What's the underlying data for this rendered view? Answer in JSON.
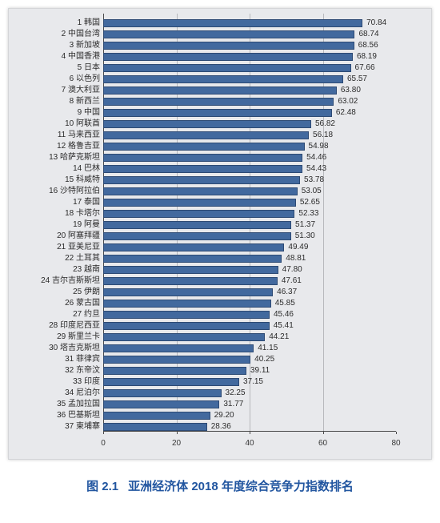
{
  "chart": {
    "type": "bar-horizontal",
    "background_color": "#e8e9ec",
    "bar_color": "#42699e",
    "bar_border_color": "#2d4a74",
    "grid_color": "#b7b8bc",
    "axis_color": "#4a4a4a",
    "text_color": "#2b2b2b",
    "label_fontsize": 10,
    "value_fontsize": 10,
    "xlim": [
      0,
      80
    ],
    "xtick_step": 20,
    "xticks": [
      "0",
      "20",
      "40",
      "60",
      "80"
    ],
    "rows": [
      {
        "rank": "1",
        "name": "韩国",
        "value": 70.84,
        "value_text": "70.84"
      },
      {
        "rank": "2",
        "name": "中国台湾",
        "value": 68.74,
        "value_text": "68.74"
      },
      {
        "rank": "3",
        "name": "新加坡",
        "value": 68.56,
        "value_text": "68.56"
      },
      {
        "rank": "4",
        "name": "中国香港",
        "value": 68.19,
        "value_text": "68.19"
      },
      {
        "rank": "5",
        "name": "日本",
        "value": 67.66,
        "value_text": "67.66"
      },
      {
        "rank": "6",
        "name": "以色列",
        "value": 65.57,
        "value_text": "65.57"
      },
      {
        "rank": "7",
        "name": "澳大利亚",
        "value": 63.8,
        "value_text": "63.80"
      },
      {
        "rank": "8",
        "name": "新西兰",
        "value": 63.02,
        "value_text": "63.02"
      },
      {
        "rank": "9",
        "name": "中国",
        "value": 62.48,
        "value_text": "62.48"
      },
      {
        "rank": "10",
        "name": "阿联酋",
        "value": 56.82,
        "value_text": "56.82"
      },
      {
        "rank": "11",
        "name": "马来西亚",
        "value": 56.18,
        "value_text": "56.18"
      },
      {
        "rank": "12",
        "name": "格鲁吉亚",
        "value": 54.98,
        "value_text": "54.98"
      },
      {
        "rank": "13",
        "name": "哈萨克斯坦",
        "value": 54.46,
        "value_text": "54.46"
      },
      {
        "rank": "14",
        "name": "巴林",
        "value": 54.43,
        "value_text": "54.43"
      },
      {
        "rank": "15",
        "name": "科威特",
        "value": 53.78,
        "value_text": "53.78"
      },
      {
        "rank": "16",
        "name": "沙特阿拉伯",
        "value": 53.05,
        "value_text": "53.05"
      },
      {
        "rank": "17",
        "name": "泰国",
        "value": 52.65,
        "value_text": "52.65"
      },
      {
        "rank": "18",
        "name": "卡塔尔",
        "value": 52.33,
        "value_text": "52.33"
      },
      {
        "rank": "19",
        "name": "阿曼",
        "value": 51.37,
        "value_text": "51.37"
      },
      {
        "rank": "20",
        "name": "阿塞拜疆",
        "value": 51.3,
        "value_text": "51.30"
      },
      {
        "rank": "21",
        "name": "亚美尼亚",
        "value": 49.49,
        "value_text": "49.49"
      },
      {
        "rank": "22",
        "name": "土耳其",
        "value": 48.81,
        "value_text": "48.81"
      },
      {
        "rank": "23",
        "name": "越南",
        "value": 47.8,
        "value_text": "47.80"
      },
      {
        "rank": "24",
        "name": "吉尔吉斯斯坦",
        "value": 47.61,
        "value_text": "47.61"
      },
      {
        "rank": "25",
        "name": "伊朗",
        "value": 46.37,
        "value_text": "46.37"
      },
      {
        "rank": "26",
        "name": "蒙古国",
        "value": 45.85,
        "value_text": "45.85"
      },
      {
        "rank": "27",
        "name": "约旦",
        "value": 45.46,
        "value_text": "45.46"
      },
      {
        "rank": "28",
        "name": "印度尼西亚",
        "value": 45.41,
        "value_text": "45.41"
      },
      {
        "rank": "29",
        "name": "斯里兰卡",
        "value": 44.21,
        "value_text": "44.21"
      },
      {
        "rank": "30",
        "name": "塔吉克斯坦",
        "value": 41.15,
        "value_text": "41.15"
      },
      {
        "rank": "31",
        "name": "菲律宾",
        "value": 40.25,
        "value_text": "40.25"
      },
      {
        "rank": "32",
        "name": "东帝汶",
        "value": 39.11,
        "value_text": "39.11"
      },
      {
        "rank": "33",
        "name": "印度",
        "value": 37.15,
        "value_text": "37.15"
      },
      {
        "rank": "34",
        "name": "尼泊尔",
        "value": 32.25,
        "value_text": "32.25"
      },
      {
        "rank": "35",
        "name": "孟加拉国",
        "value": 31.77,
        "value_text": "31.77"
      },
      {
        "rank": "36",
        "name": "巴基斯坦",
        "value": 29.2,
        "value_text": "29.20"
      },
      {
        "rank": "37",
        "name": "柬埔寨",
        "value": 28.36,
        "value_text": "28.36"
      }
    ]
  },
  "caption": {
    "figure_number": "图 2.1",
    "title": "亚洲经济体 2018 年度综合竞争力指数排名",
    "color": "#2256a0",
    "fontsize": 15
  }
}
